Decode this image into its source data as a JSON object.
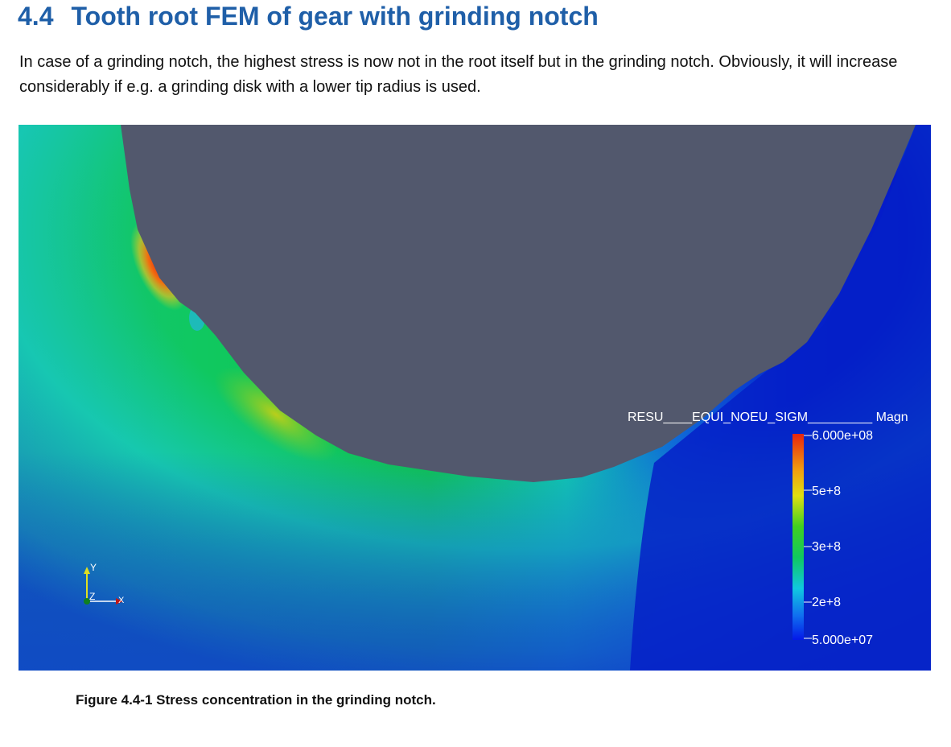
{
  "heading": {
    "number": "4.4",
    "title": "Tooth root FEM of gear with grinding notch"
  },
  "paragraph": "In case of a grinding notch, the highest stress is now not in the root itself but in the grinding notch. Obviously, it will increase considerably if e.g. a grinding disk with a lower tip radius is used.",
  "figure": {
    "legend": {
      "title": "RESU____EQUI_NOEU_SIGM_________ Magn",
      "ticks": [
        "6.000e+08",
        "5e+8",
        "3e+8",
        "2e+8",
        "5.000e+07"
      ]
    },
    "axes": {
      "y": "Y",
      "z": "Z",
      "x": "X"
    },
    "colors": {
      "gear_body": "#52586d",
      "max_stress": "#e8240f",
      "min_stress": "#0418c8"
    }
  },
  "caption": "Figure 4.4-1 Stress concentration in the grinding notch."
}
